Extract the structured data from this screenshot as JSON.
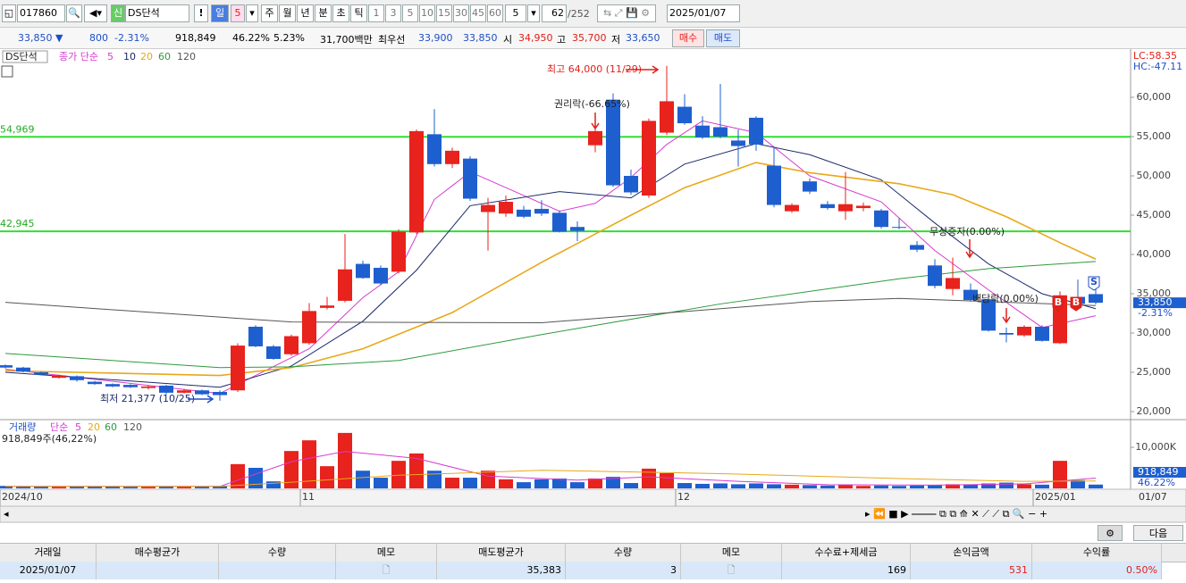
{
  "toolbar": {
    "code": "017860",
    "name": "DS단석",
    "badge": "신",
    "period": "일",
    "period_n": "5",
    "periods": [
      "주",
      "월",
      "년",
      "분",
      "초",
      "틱"
    ],
    "intervals": [
      "1",
      "3",
      "5",
      "10",
      "15",
      "30",
      "45",
      "60"
    ],
    "interval_n": "5",
    "count": "62",
    "total": "/252",
    "date": "2025/01/07"
  },
  "quote": {
    "price": "33,850 ▼",
    "change": "800",
    "change_pct": "-2.31%",
    "volume": "918,849",
    "volume_pct": "46.22%",
    "turnover": "5.23%",
    "amount": "31,700백만",
    "best_label": "최우선",
    "ask": "33,900",
    "bid": "33,850",
    "open_label": "시",
    "open": "34,950",
    "high_label": "고",
    "high": "35,700",
    "low_label": "저",
    "low": "33,650",
    "buy": "매수",
    "sell": "매도"
  },
  "chart_data": [
    {
      "type": "candlestick",
      "title": "DS단석",
      "ma_label": "종가 단순",
      "up_color": "#e8221c",
      "down_color": "#1e5fcf",
      "ylim": [
        18977,
        65909
      ],
      "yticks": [
        {
          "value": 20000,
          "label": "20,000"
        },
        {
          "value": 25000,
          "label": "25,000"
        },
        {
          "value": 30000,
          "label": "30,000"
        },
        {
          "value": 35000,
          "label": "35,000"
        },
        {
          "value": 40000,
          "label": "40,000"
        },
        {
          "value": 45000,
          "label": "45,000"
        },
        {
          "value": 50000,
          "label": "50,000"
        },
        {
          "value": 55000,
          "label": "55,000"
        },
        {
          "value": 60000,
          "label": "60,000"
        }
      ],
      "xticks": [
        {
          "value": 0,
          "label": "2024/10"
        },
        {
          "value": 16.5,
          "label": "11"
        },
        {
          "value": 37.5,
          "label": "12"
        },
        {
          "value": 57.5,
          "label": "2025/01"
        }
      ],
      "last_date": "01/07",
      "lc": "LC:58.35",
      "hc": "HC:-47.11",
      "price_label": "33,850",
      "pct_label": "-2.31%",
      "hlines": [
        {
          "value": 54969,
          "label": "54,969",
          "color": "#33dd33"
        },
        {
          "value": 42945,
          "label": "42,945",
          "color": "#33dd33"
        }
      ],
      "annotations": [
        "최고 64,000 (11/29)",
        "최저 21,377 (10/25)",
        "권리락(-66.65%)",
        "무상증자(0.00%)",
        "배당락(0.00%)"
      ],
      "signals": [
        "B",
        "B",
        "S"
      ],
      "candles": [
        {
          "open": 25900,
          "high": 26000,
          "low": 25500,
          "close": 25600
        },
        {
          "open": 25600,
          "high": 25700,
          "low": 25000,
          "close": 25100
        },
        {
          "open": 25000,
          "high": 25100,
          "low": 24600,
          "close": 24700
        },
        {
          "open": 24300,
          "high": 24700,
          "low": 24200,
          "close": 24600
        },
        {
          "open": 24500,
          "high": 24600,
          "low": 23800,
          "close": 24000
        },
        {
          "open": 23800,
          "high": 23900,
          "low": 23400,
          "close": 23500
        },
        {
          "open": 23500,
          "high": 23600,
          "low": 23100,
          "close": 23200
        },
        {
          "open": 23400,
          "high": 23500,
          "low": 23000,
          "close": 23100
        },
        {
          "open": 23000,
          "high": 23300,
          "low": 22800,
          "close": 23200
        },
        {
          "open": 23300,
          "high": 23400,
          "low": 22200,
          "close": 22400
        },
        {
          "open": 22400,
          "high": 22900,
          "low": 22300,
          "close": 22700
        },
        {
          "open": 22700,
          "high": 22800,
          "low": 22100,
          "close": 22200
        },
        {
          "open": 22500,
          "high": 22700,
          "low": 21377,
          "close": 22100
        },
        {
          "open": 22700,
          "high": 28700,
          "low": 22500,
          "close": 28400
        },
        {
          "open": 30800,
          "high": 31000,
          "low": 28200,
          "close": 28300
        },
        {
          "open": 28300,
          "high": 28500,
          "low": 26600,
          "close": 26700
        },
        {
          "open": 27300,
          "high": 29800,
          "low": 27100,
          "close": 29600
        },
        {
          "open": 28700,
          "high": 33800,
          "low": 28500,
          "close": 32800
        },
        {
          "open": 33200,
          "high": 34600,
          "low": 33000,
          "close": 33500
        },
        {
          "open": 34100,
          "high": 42600,
          "low": 33900,
          "close": 38100
        },
        {
          "open": 38800,
          "high": 39200,
          "low": 36900,
          "close": 37000
        },
        {
          "open": 38300,
          "high": 38600,
          "low": 36100,
          "close": 36300
        },
        {
          "open": 37800,
          "high": 43200,
          "low": 37600,
          "close": 42900
        },
        {
          "open": 42800,
          "high": 55900,
          "low": 42600,
          "close": 55700
        },
        {
          "open": 55300,
          "high": 58500,
          "low": 51200,
          "close": 51500
        },
        {
          "open": 51500,
          "high": 53600,
          "low": 51000,
          "close": 53200
        },
        {
          "open": 52200,
          "high": 52500,
          "low": 46800,
          "close": 47100
        },
        {
          "open": 45400,
          "high": 47200,
          "low": 40500,
          "close": 46300
        },
        {
          "open": 45200,
          "high": 47500,
          "low": 44800,
          "close": 46700
        },
        {
          "open": 45700,
          "high": 46200,
          "low": 44600,
          "close": 44800
        },
        {
          "open": 45800,
          "high": 46900,
          "low": 44900,
          "close": 45200
        },
        {
          "open": 45300,
          "high": 45600,
          "low": 42800,
          "close": 42900
        },
        {
          "open": 43500,
          "high": 44200,
          "low": 41700,
          "close": 43000
        },
        {
          "open": 53900,
          "high": 56500,
          "low": 53000,
          "close": 55700
        },
        {
          "open": 59700,
          "high": 60500,
          "low": 48600,
          "close": 48800
        },
        {
          "open": 50000,
          "high": 50800,
          "low": 47600,
          "close": 47900
        },
        {
          "open": 47500,
          "high": 57300,
          "low": 47200,
          "close": 57000
        },
        {
          "open": 55500,
          "high": 64000,
          "low": 55200,
          "close": 59500
        },
        {
          "open": 58800,
          "high": 60400,
          "low": 56500,
          "close": 56700
        },
        {
          "open": 56400,
          "high": 57600,
          "low": 54700,
          "close": 54900
        },
        {
          "open": 56200,
          "high": 61700,
          "low": 54800,
          "close": 55000
        },
        {
          "open": 54500,
          "high": 55900,
          "low": 51200,
          "close": 53800
        },
        {
          "open": 57400,
          "high": 57600,
          "low": 53200,
          "close": 54000
        },
        {
          "open": 51300,
          "high": 53700,
          "low": 46000,
          "close": 46300
        },
        {
          "open": 45500,
          "high": 46500,
          "low": 45300,
          "close": 46300
        },
        {
          "open": 49300,
          "high": 49700,
          "low": 47700,
          "close": 48000
        },
        {
          "open": 46400,
          "high": 46800,
          "low": 45700,
          "close": 45900
        },
        {
          "open": 45500,
          "high": 50500,
          "low": 44400,
          "close": 46400
        },
        {
          "open": 45900,
          "high": 46600,
          "low": 45500,
          "close": 46200
        },
        {
          "open": 45600,
          "high": 45800,
          "low": 43300,
          "close": 43500
        },
        {
          "open": 43500,
          "high": 44600,
          "low": 43200,
          "close": 43400
        },
        {
          "open": 41200,
          "high": 41700,
          "low": 40300,
          "close": 40600
        },
        {
          "open": 38600,
          "high": 39400,
          "low": 35700,
          "close": 36000
        },
        {
          "open": 35600,
          "high": 39600,
          "low": 34800,
          "close": 37000
        },
        {
          "open": 35500,
          "high": 36300,
          "low": 34000,
          "close": 34200
        },
        {
          "open": 34300,
          "high": 34400,
          "low": 30200,
          "close": 30300
        },
        {
          "open": 30000,
          "high": 30700,
          "low": 28800,
          "close": 29800
        },
        {
          "open": 29700,
          "high": 31000,
          "low": 29500,
          "close": 30800
        },
        {
          "open": 30800,
          "high": 31000,
          "low": 28900,
          "close": 29000
        },
        {
          "open": 28700,
          "high": 35300,
          "low": 28600,
          "close": 34800
        },
        {
          "open": 34600,
          "high": 36800,
          "low": 33500,
          "close": 33700
        },
        {
          "open": 34950,
          "high": 35700,
          "low": 33650,
          "close": 33850
        }
      ],
      "series": [
        {
          "name": "5",
          "color": "#d63ccf",
          "x": [
            0,
            12,
            14,
            17,
            20,
            22,
            24,
            26,
            28,
            31,
            33,
            35,
            37,
            39,
            42,
            45,
            49,
            52,
            55,
            58,
            61
          ],
          "values": [
            25400,
            22300,
            24600,
            28000,
            34500,
            37800,
            47000,
            50500,
            48500,
            45500,
            46500,
            49800,
            54000,
            57000,
            55500,
            50000,
            46700,
            40500,
            35500,
            30700,
            32200
          ]
        },
        {
          "name": "10",
          "color": "#1b2a6b",
          "x": [
            0,
            12,
            16,
            20,
            23,
            26,
            31,
            35,
            38,
            42,
            45,
            49,
            52,
            55,
            58,
            61
          ],
          "values": [
            25000,
            23100,
            25800,
            31500,
            38000,
            46200,
            48000,
            47200,
            51500,
            54100,
            52700,
            49500,
            44000,
            38800,
            35000,
            33100
          ]
        },
        {
          "name": "20",
          "color": "#e8a81a",
          "x": [
            0,
            12,
            16,
            20,
            25,
            30,
            35,
            38,
            42,
            45,
            50,
            53,
            56,
            59,
            61
          ],
          "values": [
            25200,
            24600,
            25600,
            28000,
            32600,
            39000,
            45000,
            48500,
            51700,
            50400,
            49000,
            47600,
            44800,
            41500,
            39400
          ]
        },
        {
          "name": "60",
          "color": "#2d9a3c",
          "x": [
            0,
            12,
            16,
            22,
            30,
            40,
            50,
            55,
            61
          ],
          "values": [
            27400,
            25600,
            25700,
            26500,
            29800,
            33700,
            36900,
            38200,
            39100
          ]
        },
        {
          "name": "120",
          "color": "#555555",
          "x": [
            0,
            16,
            30,
            45,
            50,
            55,
            61
          ],
          "values": [
            33900,
            31400,
            31300,
            34000,
            34400,
            34000,
            33500
          ]
        }
      ]
    },
    {
      "type": "bar",
      "title": "거래량",
      "ma_label": "단순",
      "sub": "918,849주(46,22%)",
      "last_label": "918,849",
      "last_pct": "46.22%",
      "ylim": [
        0,
        16304
      ],
      "yticks": [
        {
          "value": 10000,
          "label": "10,000K"
        }
      ],
      "values": [
        600,
        500,
        450,
        400,
        450,
        500,
        450,
        400,
        400,
        550,
        400,
        450,
        600,
        5900,
        5000,
        1700,
        9100,
        11700,
        5400,
        13500,
        4300,
        2600,
        6700,
        8500,
        4300,
        2600,
        2600,
        4300,
        2200,
        1500,
        2200,
        2400,
        1500,
        2400,
        2800,
        1300,
        4800,
        3700,
        1300,
        1100,
        1200,
        1000,
        1200,
        1000,
        900,
        800,
        700,
        900,
        600,
        700,
        600,
        700,
        800,
        1000,
        900,
        1200,
        1400,
        1000,
        900,
        6700,
        2000,
        918.849
      ],
      "series": [
        {
          "name": "5",
          "color": "#d63ccf",
          "x": [
            0,
            12,
            16,
            19,
            23,
            27,
            32,
            36,
            41,
            46,
            52,
            57,
            61
          ],
          "values": [
            500,
            480,
            6500,
            9000,
            7300,
            3000,
            2000,
            2800,
            1700,
            900,
            800,
            1100,
            2500
          ]
        },
        {
          "name": "20",
          "color": "#e8a81a",
          "x": [
            0,
            12,
            16,
            22,
            30,
            40,
            50,
            57,
            61
          ],
          "values": [
            500,
            500,
            1500,
            3200,
            4400,
            3600,
            2400,
            1700,
            1800
          ]
        },
        {
          "name": "60",
          "color": "#2d9a3c",
          "x": [],
          "values": []
        },
        {
          "name": "120",
          "color": "#555555",
          "x": [],
          "values": []
        }
      ]
    }
  ],
  "table": {
    "headers": [
      "거래일",
      "매수평균가",
      "수량",
      "메모",
      "매도평균가",
      "수량",
      "메모",
      "수수료+제세금",
      "손익금액",
      "수익률"
    ],
    "rows": [
      [
        "2025/01/07",
        "",
        "",
        "",
        "35,383",
        "3",
        "",
        "169",
        "531",
        "0.50%"
      ]
    ]
  },
  "next_button": "다음"
}
